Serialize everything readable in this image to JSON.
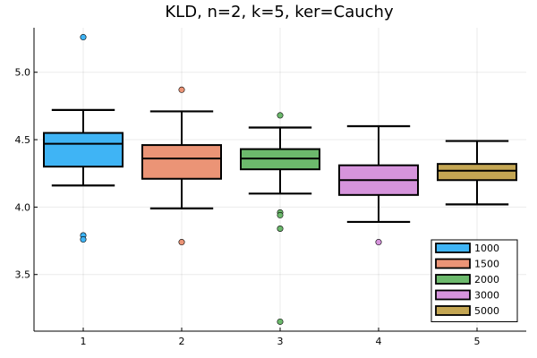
{
  "chart_data": {
    "type": "box",
    "title": "KLD, n=2, k=5, ker=Cauchy",
    "xlabel": "",
    "ylabel": "",
    "xlim": [
      0.5,
      5.5
    ],
    "ylim": [
      3.08,
      5.33
    ],
    "xticks": [
      1,
      2,
      3,
      4,
      5
    ],
    "xtick_labels": [
      "1",
      "2",
      "3",
      "4",
      "5"
    ],
    "yticks": [
      3.5,
      4.0,
      4.5,
      5.0
    ],
    "ytick_labels": [
      "3.5",
      "4.0",
      "4.5",
      "5.0"
    ],
    "grid": true,
    "legend_position": "bottom-right",
    "series": [
      {
        "name": "1000",
        "x": 1,
        "color": "#3fb4f5",
        "whisker_low": 4.16,
        "q1": 4.3,
        "median": 4.47,
        "q3": 4.55,
        "whisker_high": 4.72,
        "outliers": [
          5.26,
          3.79,
          3.76
        ]
      },
      {
        "name": "1500",
        "x": 2,
        "color": "#eb9476",
        "whisker_low": 3.99,
        "q1": 4.21,
        "median": 4.36,
        "q3": 4.46,
        "whisker_high": 4.71,
        "outliers": [
          4.87,
          3.74
        ]
      },
      {
        "name": "2000",
        "x": 3,
        "color": "#6cb96c",
        "whisker_low": 4.1,
        "q1": 4.28,
        "median": 4.36,
        "q3": 4.43,
        "whisker_high": 4.59,
        "outliers": [
          4.68,
          3.96,
          3.94,
          3.84,
          3.15
        ]
      },
      {
        "name": "3000",
        "x": 4,
        "color": "#d694dc",
        "whisker_low": 3.89,
        "q1": 4.09,
        "median": 4.2,
        "q3": 4.31,
        "whisker_high": 4.6,
        "outliers": [
          3.74
        ]
      },
      {
        "name": "5000",
        "x": 5,
        "color": "#c4a653",
        "whisker_low": 4.02,
        "q1": 4.2,
        "median": 4.27,
        "q3": 4.32,
        "whisker_high": 4.49,
        "outliers": []
      }
    ]
  }
}
